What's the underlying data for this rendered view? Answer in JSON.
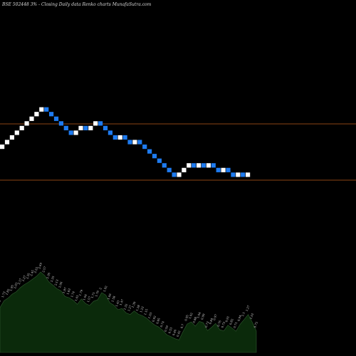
{
  "header": {
    "text": "BSE 502448  3% -  Closing Daily data  Renko  charts MunafaSutra.com"
  },
  "colors": {
    "background": "#000000",
    "up_brick": "#ffffff",
    "down_brick": "#1e7bf0",
    "reference_line": "#8b4513",
    "volume_fill": "#0b2a0b",
    "volume_stroke": "#2f5a2f",
    "text": "#dcdcdc"
  },
  "chart_data": {
    "type": "renko",
    "title": "BSE 502448  3% -  Closing Daily data  Renko  charts MunafaSutra.com",
    "box_size_percent": 3,
    "bricks": [
      "up",
      "up",
      "up",
      "up",
      "up",
      "up",
      "up",
      "up",
      "up",
      "down",
      "down",
      "down",
      "down",
      "down",
      "down",
      "up",
      "up",
      "down",
      "up",
      "up",
      "down",
      "down",
      "down",
      "down",
      "up",
      "down",
      "down",
      "up",
      "down",
      "down",
      "down",
      "down",
      "down",
      "down",
      "down",
      "down",
      "up",
      "up",
      "up",
      "down",
      "up",
      "down",
      "up",
      "down",
      "down",
      "up",
      "down",
      "down",
      "up",
      "down",
      "up"
    ],
    "reference_levels_px_note": "",
    "volume": {
      "values": [
        1.5,
        1.73,
        1.82,
        1.95,
        2.03,
        2.17,
        2.27,
        2.35,
        2.45,
        2.55,
        2.69,
        2.57,
        2.36,
        2.25,
        2.13,
        2.06,
        1.87,
        1.83,
        1.74,
        1.61,
        1.79,
        1.64,
        1.57,
        1.71,
        1.76,
        2.0,
        1.92,
        1.66,
        1.58,
        1.43,
        1.47,
        1.32,
        1.27,
        1.39,
        1.28,
        1.23,
        1.15,
        1.03,
        0.92,
        0.85,
        0.74,
        0.59,
        0.53,
        0.46,
        0.42,
        0.7,
        0.95,
        1.02,
        0.88,
        1.04,
        0.99,
        0.73,
        0.84,
        0.97,
        0.76,
        0.72,
        0.91,
        0.82,
        0.71,
        0.94,
        1.1,
        1.27,
        1.01,
        0.72
      ],
      "labels": [
        "1.5",
        "1.73",
        "1.82",
        "1.95",
        "2.03",
        "2.17",
        "2.27",
        "2.35",
        "2.45",
        "2.55",
        "2.69",
        "2.57",
        "2.36",
        "2.25",
        "2.13",
        "2.06",
        "1.87",
        "1.83",
        "1.74",
        "1.61",
        "1.79",
        "1.64",
        "1.57",
        "1.71",
        "1.76",
        "2",
        "1.92",
        "1.66",
        "1.58",
        "1.43",
        "1.47",
        "1.32",
        "1.27",
        "1.39",
        "1.28",
        "1.23",
        "1.15",
        "1.03",
        "0.92",
        "0.85",
        "0.74",
        "0.59",
        "0.53",
        "0.46",
        "0.42",
        "0.7",
        "0.95",
        "1.02",
        "0.88",
        "1.04",
        "0.99",
        "0.73",
        "0.84",
        "0.97",
        "0.76",
        "0.72",
        "0.91",
        "0.82",
        "0.71",
        "0.94",
        "1.1",
        "1.27",
        "1.01",
        "0.72"
      ]
    }
  }
}
